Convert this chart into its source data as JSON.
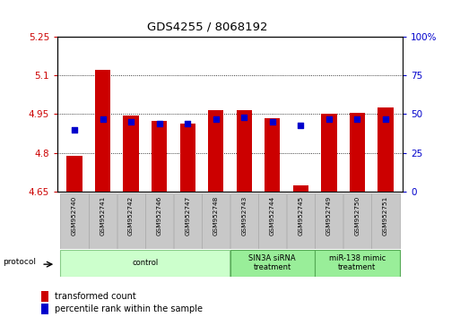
{
  "title": "GDS4255 / 8068192",
  "samples": [
    "GSM952740",
    "GSM952741",
    "GSM952742",
    "GSM952746",
    "GSM952747",
    "GSM952748",
    "GSM952743",
    "GSM952744",
    "GSM952745",
    "GSM952749",
    "GSM952750",
    "GSM952751"
  ],
  "transformed_counts": [
    4.79,
    5.12,
    4.945,
    4.925,
    4.915,
    4.965,
    4.965,
    4.935,
    4.675,
    4.95,
    4.955,
    4.975
  ],
  "percentile_ranks": [
    40,
    47,
    45,
    44,
    44,
    47,
    48,
    45,
    43,
    47,
    47,
    47
  ],
  "ylim_left": [
    4.65,
    5.25
  ],
  "ylim_right": [
    0,
    100
  ],
  "yticks_left": [
    4.65,
    4.8,
    4.95,
    5.1,
    5.25
  ],
  "yticks_right": [
    0,
    25,
    50,
    75,
    100
  ],
  "ytick_labels_left": [
    "4.65",
    "4.8",
    "4.95",
    "5.1",
    "5.25"
  ],
  "ytick_labels_right": [
    "0",
    "25",
    "50",
    "75",
    "100%"
  ],
  "bar_color": "#cc0000",
  "dot_color": "#0000cc",
  "bar_width": 0.55,
  "groups": [
    {
      "label": "control",
      "start": 0,
      "end": 5,
      "color": "#ccffcc",
      "edge_color": "#88cc88"
    },
    {
      "label": "SIN3A siRNA\ntreatment",
      "start": 6,
      "end": 8,
      "color": "#99ee99",
      "edge_color": "#55aa55"
    },
    {
      "label": "miR-138 mimic\ntreatment",
      "start": 9,
      "end": 11,
      "color": "#99ee99",
      "edge_color": "#55aa55"
    }
  ],
  "legend_bar_label": "transformed count",
  "legend_dot_label": "percentile rank within the sample",
  "ylabel_left_color": "#cc0000",
  "ylabel_right_color": "#0000cc",
  "protocol_label": "protocol",
  "n_samples": 12
}
